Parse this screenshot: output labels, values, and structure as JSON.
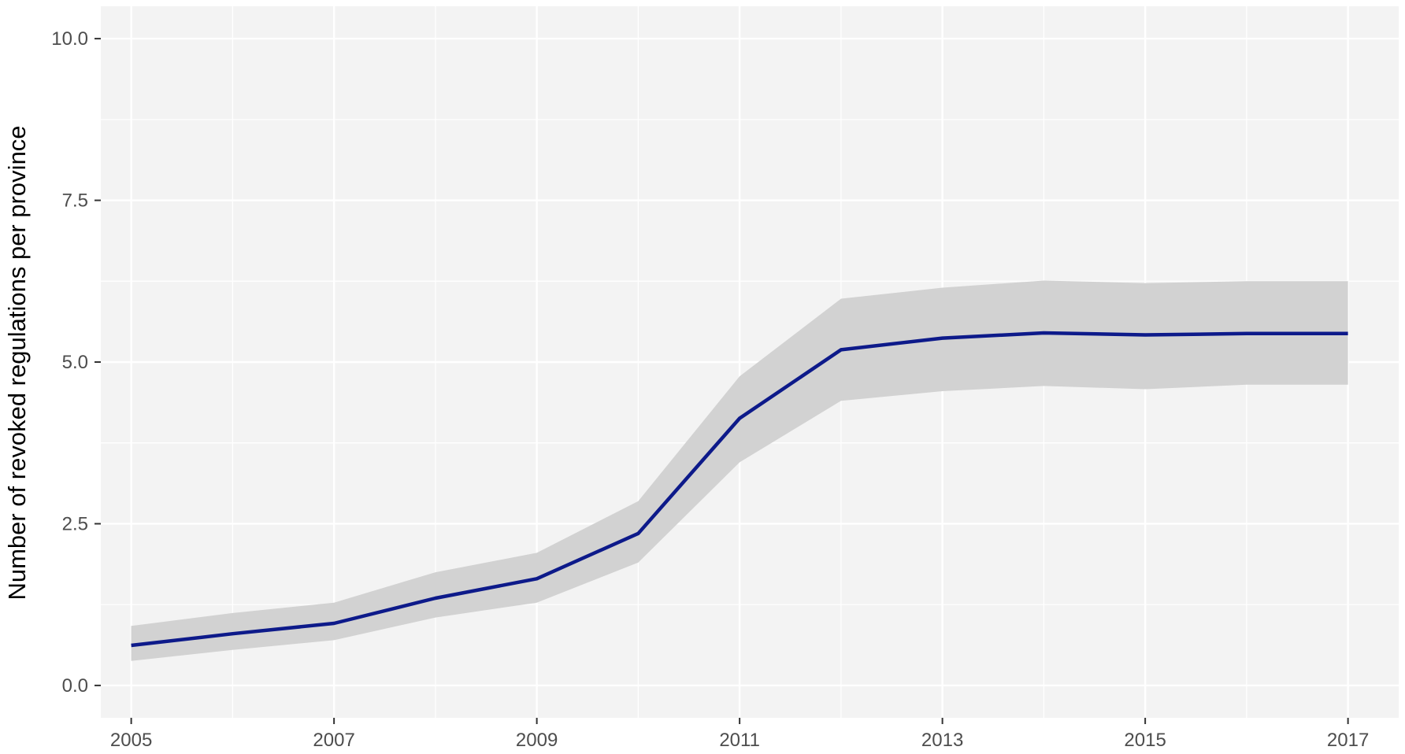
{
  "chart_data": {
    "type": "line",
    "title": "",
    "xlabel": "",
    "ylabel": "Number of revoked regulations per province",
    "x": [
      2005,
      2006,
      2007,
      2008,
      2009,
      2010,
      2011,
      2012,
      2013,
      2014,
      2015,
      2016,
      2017
    ],
    "series": [
      {
        "values": [
          0.62,
          0.8,
          0.96,
          1.35,
          1.65,
          2.35,
          4.13,
          5.19,
          5.37,
          5.45,
          5.42,
          5.44,
          5.44
        ],
        "lower": [
          0.38,
          0.55,
          0.7,
          1.05,
          1.28,
          1.9,
          3.45,
          4.4,
          4.55,
          4.63,
          4.58,
          4.65,
          4.65
        ],
        "upper": [
          0.92,
          1.12,
          1.28,
          1.75,
          2.05,
          2.85,
          4.78,
          5.98,
          6.15,
          6.26,
          6.22,
          6.25,
          6.25
        ]
      }
    ],
    "xlim": [
      2004.7,
      2017.5
    ],
    "ylim": [
      -0.5,
      10.5
    ],
    "x_ticks": [
      "2005",
      "2007",
      "2009",
      "2011",
      "2013",
      "2015",
      "2017"
    ],
    "y_ticks": [
      "0.0",
      "2.5",
      "5.0",
      "7.5",
      "10.0"
    ],
    "grid": true,
    "colors": {
      "line": "#0d1a8a",
      "band": "#d2d2d2",
      "panel": "#f3f3f3",
      "grid": "#ffffff",
      "tick": "#333333"
    }
  }
}
